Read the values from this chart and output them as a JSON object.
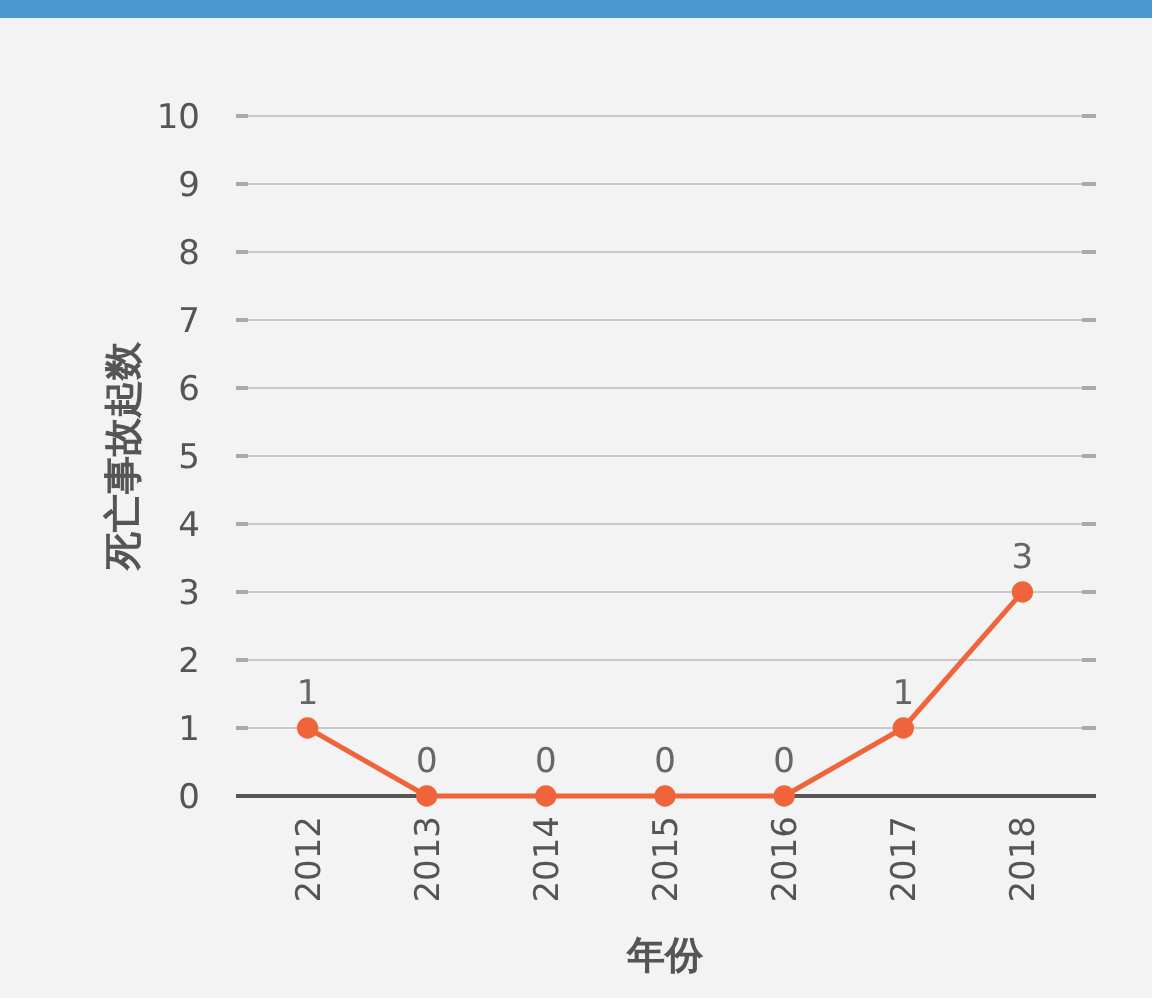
{
  "chart_data": {
    "type": "line",
    "xlabel": "年份",
    "ylabel": "死亡事故起数",
    "categories": [
      "2012",
      "2013",
      "2014",
      "2015",
      "2016",
      "2017",
      "2018"
    ],
    "series": [
      {
        "color": "#f0643c",
        "values": [
          1,
          0,
          0,
          0,
          0,
          1,
          3
        ]
      }
    ],
    "ylim": [
      0,
      10
    ],
    "yticks": [
      0,
      1,
      2,
      3,
      4,
      5,
      6,
      7,
      8,
      9,
      10
    ],
    "grid": "y",
    "marker": "circle",
    "line_style": "solid",
    "data_labels": true
  }
}
